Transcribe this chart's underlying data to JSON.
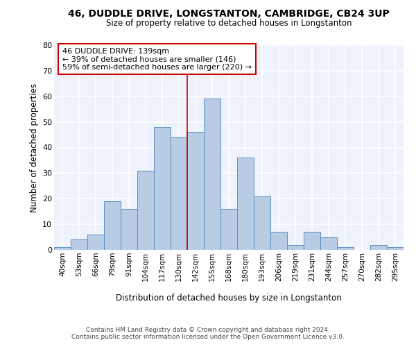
{
  "title1": "46, DUDDLE DRIVE, LONGSTANTON, CAMBRIDGE, CB24 3UP",
  "title2": "Size of property relative to detached houses in Longstanton",
  "xlabel": "Distribution of detached houses by size in Longstanton",
  "ylabel": "Number of detached properties",
  "footer1": "Contains HM Land Registry data © Crown copyright and database right 2024.",
  "footer2": "Contains public sector information licensed under the Open Government Licence v3.0.",
  "annotation_line1": "46 DUDDLE DRIVE: 139sqm",
  "annotation_line2": "← 39% of detached houses are smaller (146)",
  "annotation_line3": "59% of semi-detached houses are larger (220) →",
  "bar_color": "#b8cce4",
  "bar_edge_color": "#5b8fc4",
  "vline_color": "#cc0000",
  "annotation_box_edge_color": "#cc0000",
  "background_color": "#eef2fb",
  "grid_color": "#ffffff",
  "categories": [
    "40sqm",
    "53sqm",
    "66sqm",
    "79sqm",
    "91sqm",
    "104sqm",
    "117sqm",
    "130sqm",
    "142sqm",
    "155sqm",
    "168sqm",
    "180sqm",
    "193sqm",
    "206sqm",
    "219sqm",
    "231sqm",
    "244sqm",
    "257sqm",
    "270sqm",
    "282sqm",
    "295sqm"
  ],
  "values": [
    1,
    4,
    6,
    19,
    16,
    31,
    48,
    44,
    46,
    59,
    16,
    36,
    21,
    7,
    2,
    7,
    5,
    1,
    0,
    2,
    1
  ],
  "ylim": [
    0,
    80
  ],
  "yticks": [
    0,
    10,
    20,
    30,
    40,
    50,
    60,
    70,
    80
  ],
  "vertical_line_x": 8,
  "figsize": [
    6.0,
    5.0
  ],
  "dpi": 100
}
